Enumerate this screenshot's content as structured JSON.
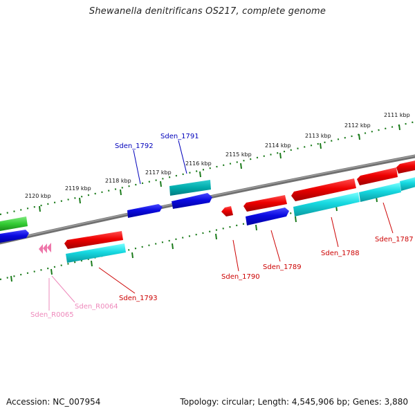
{
  "title": "Shewanella denitrificans OS217, complete genome",
  "footer": {
    "accession": "Accession: NC_007954",
    "summary": "Topology: circular; Length: 4,545,906 bp; Genes: 3,880"
  },
  "scale_labels": [
    "2111 kbp",
    "2112 kbp",
    "2113 kbp",
    "2114 kbp",
    "2115 kbp",
    "2116 kbp",
    "2117 kbp",
    "2118 kbp",
    "2119 kbp",
    "2120 kbp"
  ],
  "genes": [
    {
      "id": "g1787",
      "label": "Sden_1787",
      "color": "#cc0000"
    },
    {
      "id": "g1788",
      "label": "Sden_1788",
      "color": "#cc0000"
    },
    {
      "id": "g1789",
      "label": "Sden_1789",
      "color": "#cc0000"
    },
    {
      "id": "g1790",
      "label": "Sden_1790",
      "color": "#cc0000"
    },
    {
      "id": "g1791",
      "label": "Sden_1791",
      "color": "#0000bb"
    },
    {
      "id": "g1792",
      "label": "Sden_1792",
      "color": "#0000bb"
    },
    {
      "id": "g1793",
      "label": "Sden_1793",
      "color": "#cc0000"
    },
    {
      "id": "gR0064",
      "label": "Sden_R0064",
      "color": "#ee88bb"
    },
    {
      "id": "gR0065",
      "label": "Sden_R0065",
      "color": "#ee88bb"
    }
  ],
  "colors": {
    "forward_cds": "#ee0000",
    "reverse_cds": "#0a0ae0",
    "rna_cds": "#00bfc8",
    "other": "#33cc33",
    "trna": "#ee77aa",
    "backbone": "#808080",
    "scale": "#1a7a1a"
  }
}
